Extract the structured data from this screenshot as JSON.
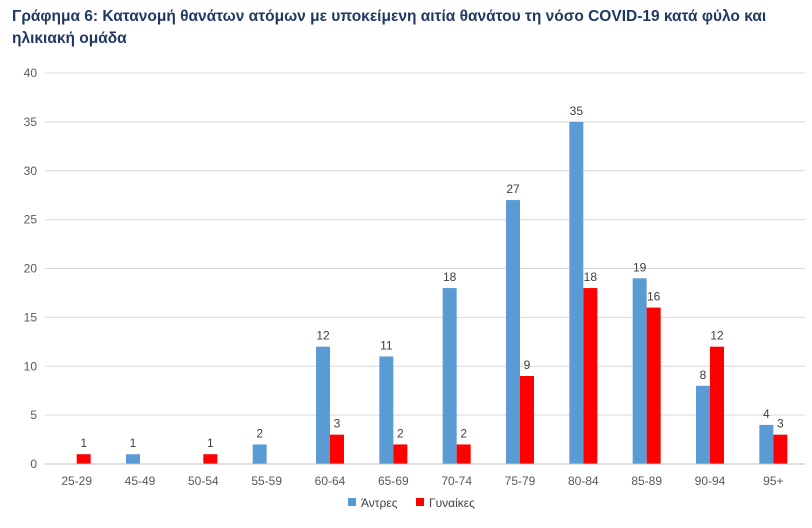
{
  "chart_data": {
    "type": "bar",
    "title": "Γράφημα 6: Κατανομή θανάτων ατόμων με υποκείμενη αιτία θανάτου τη νόσο COVID-19 κατά φύλο και ηλικιακή ομάδα",
    "xlabel": "",
    "ylabel": "",
    "categories": [
      "25-29",
      "45-49",
      "50-54",
      "55-59",
      "60-64",
      "65-69",
      "70-74",
      "75-79",
      "80-84",
      "85-89",
      "90-94",
      "95+"
    ],
    "series": [
      {
        "name": "Άντρες",
        "color": "#5b9bd5",
        "values": [
          null,
          1,
          null,
          2,
          12,
          11,
          18,
          27,
          35,
          19,
          8,
          4
        ]
      },
      {
        "name": "Γυναίκες",
        "color": "#ff0000",
        "values": [
          1,
          null,
          1,
          null,
          3,
          2,
          2,
          9,
          18,
          16,
          12,
          3
        ]
      }
    ],
    "ylim": [
      0,
      40
    ],
    "yticks": [
      0,
      5,
      10,
      15,
      20,
      25,
      30,
      35,
      40
    ],
    "grid": true,
    "legend_position": "bottom"
  }
}
